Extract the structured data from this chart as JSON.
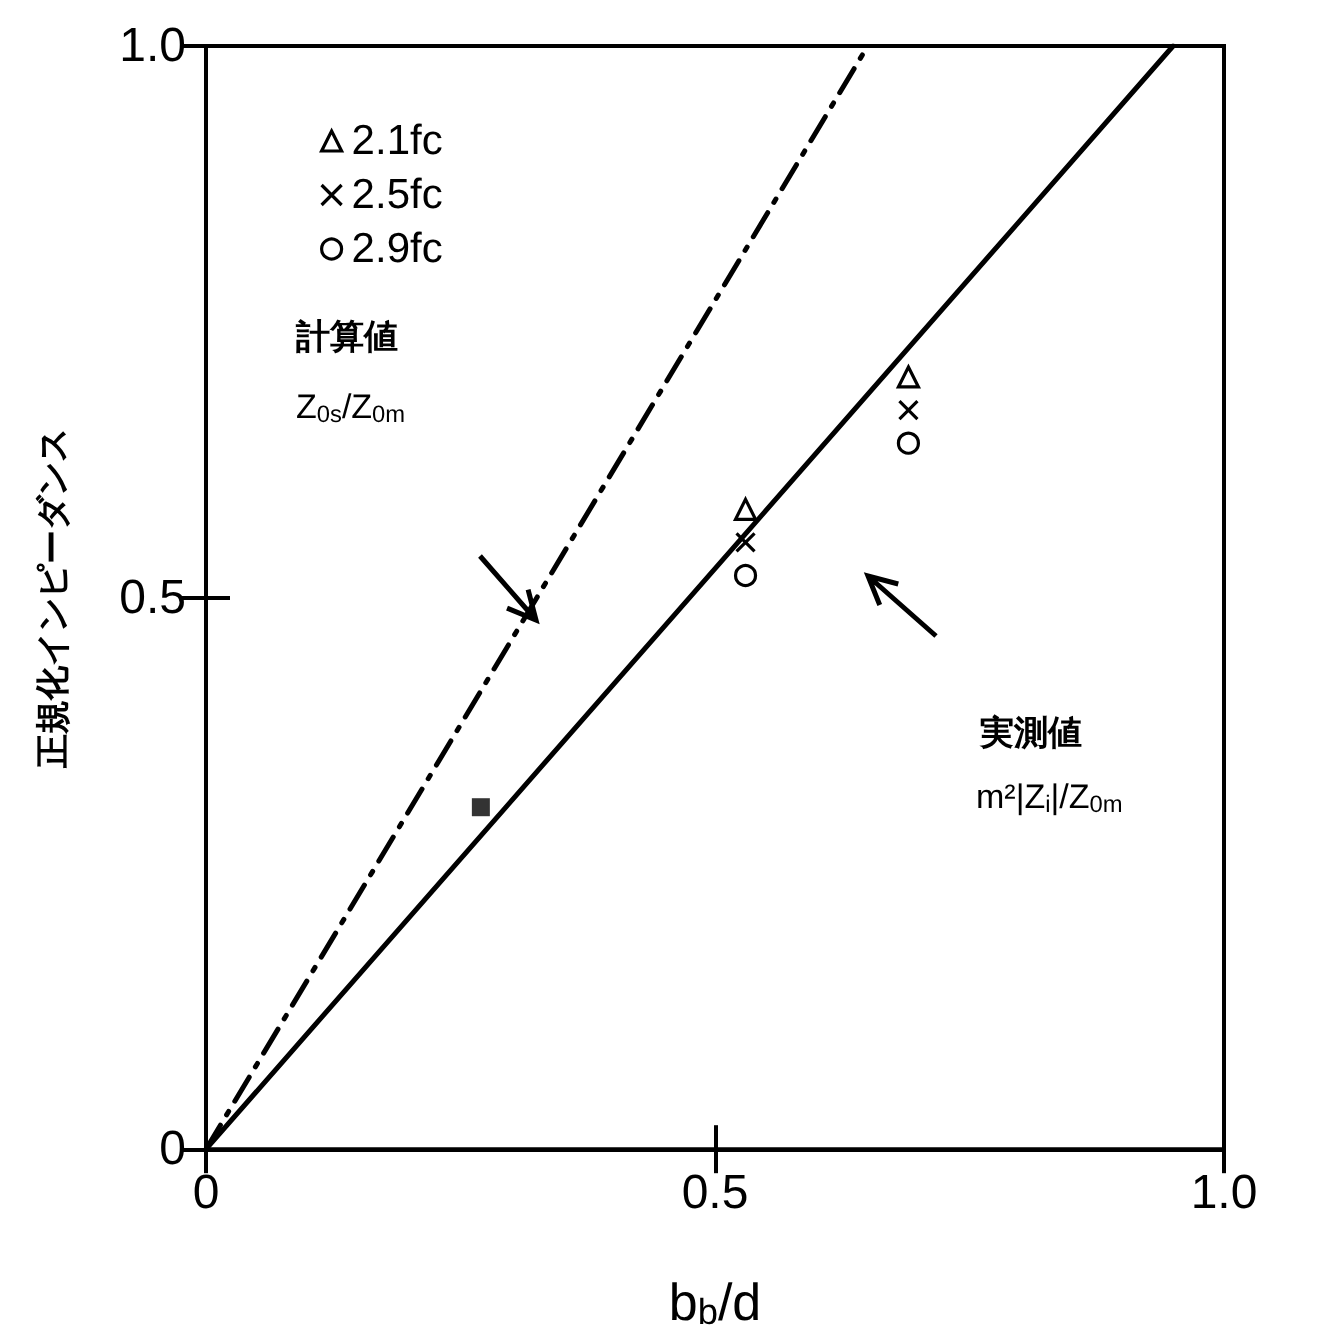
{
  "chart_data": {
    "type": "scatter",
    "xlabel": "b$_{b}$/d",
    "ylabel": "正規化インピーダンス",
    "xlim": [
      0,
      1.0
    ],
    "ylim": [
      0,
      1.0
    ],
    "xticks": [
      0,
      0.5,
      {
        "value": 1.0,
        "label": "1.0"
      }
    ],
    "yticks": [
      0,
      0.5,
      {
        "value": 1.0,
        "label": "1.0"
      }
    ],
    "grid": false,
    "legend": "top left",
    "annotations": [
      "計算値",
      "Z$_{0s}$/Z$_{0m}$",
      "実測値",
      "m²|Z$_{i}$|/Z$_{0m}$"
    ],
    "series": [
      {
        "name": "2.1fc",
        "marker": "triangle",
        "color": "#000000",
        "x": [
          0.53,
          0.69
        ],
        "values": [
          0.58,
          0.7
        ]
      },
      {
        "name": "2.5fc",
        "marker": "cross",
        "color": "#000000",
        "x": [
          0.53,
          0.69
        ],
        "values": [
          0.55,
          0.67
        ]
      },
      {
        "name": "2.9fc",
        "marker": "circle",
        "color": "#000000",
        "x": [
          0.53,
          0.69
        ],
        "values": [
          0.52,
          0.64
        ]
      },
      {
        "marker": "square",
        "color": "#000000",
        "x": [
          0.27
        ],
        "values": [
          0.31
        ]
      },
      {
        "type": "line",
        "line_style": "dashed",
        "marker": "none",
        "color": "#000000",
        "x": [
          0,
          0.65
        ],
        "values": [
          0,
          1.0
        ]
      },
      {
        "type": "line",
        "line_style": "solid",
        "marker": "none",
        "color": "#000000",
        "x": [
          0,
          0.95
        ],
        "values": [
          0,
          1.0
        ]
      }
    ]
  }
}
